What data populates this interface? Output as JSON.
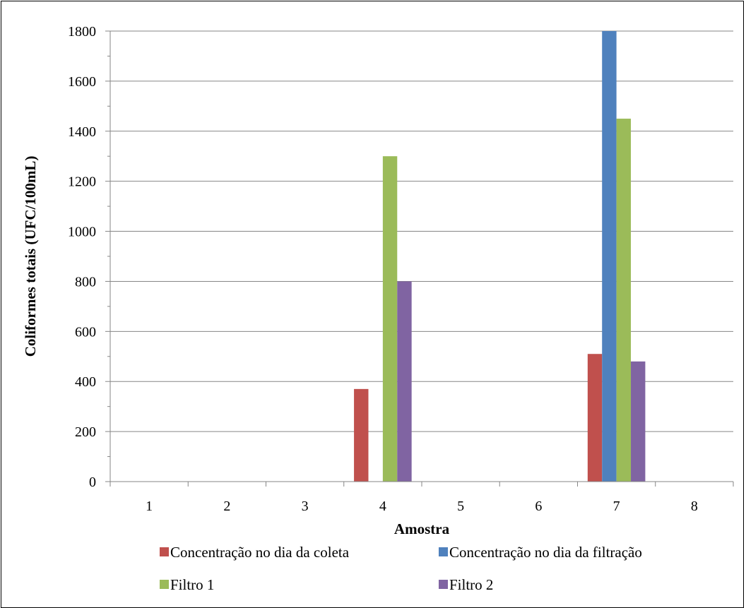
{
  "chart_data": {
    "type": "bar",
    "title": "",
    "xlabel": "Amostra",
    "ylabel": "Coliformes totais (UFC/100mL)",
    "categories": [
      "1",
      "2",
      "3",
      "4",
      "5",
      "6",
      "7",
      "8"
    ],
    "ylim": [
      0,
      1800
    ],
    "yticks": [
      0,
      200,
      400,
      600,
      800,
      1000,
      1200,
      1400,
      1600,
      1800
    ],
    "grid": true,
    "legend_position": "bottom",
    "series": [
      {
        "name": "Concentração no dia da coleta",
        "color": "#c0504d",
        "values": [
          0,
          0,
          0,
          370,
          0,
          0,
          510,
          0
        ]
      },
      {
        "name": "Concentração no dia da filtração",
        "color": "#4f81bd",
        "values": [
          0,
          0,
          0,
          0,
          0,
          0,
          1800,
          0
        ]
      },
      {
        "name": "Filtro 1",
        "color": "#9bbb59",
        "values": [
          0,
          0,
          0,
          1300,
          0,
          0,
          1450,
          0
        ]
      },
      {
        "name": "Filtro 2",
        "color": "#8064a2",
        "values": [
          0,
          0,
          0,
          800,
          0,
          0,
          480,
          0
        ]
      }
    ]
  }
}
